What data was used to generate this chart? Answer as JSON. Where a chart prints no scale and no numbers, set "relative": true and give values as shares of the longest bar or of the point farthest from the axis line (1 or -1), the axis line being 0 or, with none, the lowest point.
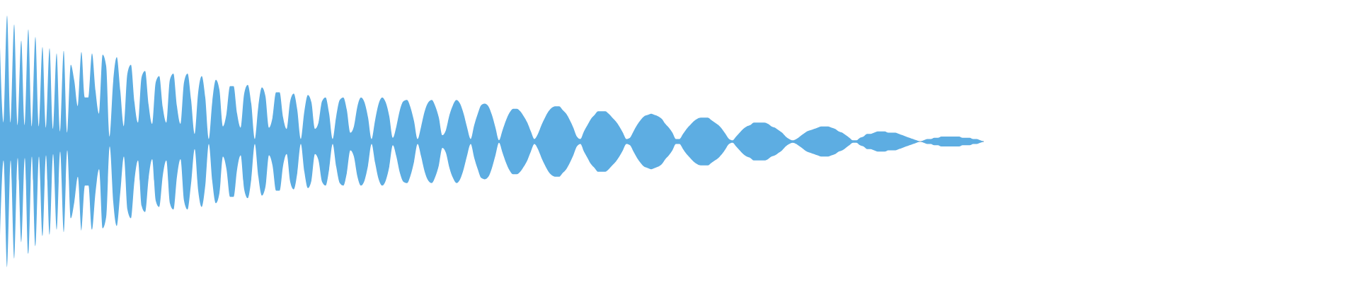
{
  "chart_data": {
    "type": "area",
    "relative": true,
    "categories": [
      null,
      null,
      null,
      null,
      null,
      null,
      null,
      null,
      null,
      null,
      null,
      null,
      null,
      null,
      null,
      null,
      null,
      null,
      null,
      null,
      null,
      null,
      null,
      null,
      null,
      null,
      null,
      null,
      null,
      null,
      null,
      null,
      null,
      null,
      null,
      null,
      null,
      null,
      null,
      null,
      null,
      null,
      null,
      null,
      null,
      null,
      null,
      null,
      null,
      null,
      null,
      null,
      null,
      null,
      null,
      null,
      null,
      null,
      null,
      null,
      null,
      null,
      null,
      null,
      null,
      null,
      null,
      null,
      null,
      null,
      null,
      null,
      null,
      null,
      null,
      null,
      null,
      null,
      null,
      null,
      null,
      null,
      null,
      null,
      null,
      null,
      null,
      null,
      null,
      null,
      null,
      null,
      null,
      null,
      null,
      null,
      null,
      null,
      null,
      null,
      null,
      null,
      null,
      null,
      null,
      null,
      null,
      null,
      null,
      null,
      null,
      null,
      null,
      null,
      null,
      null,
      null,
      null,
      null,
      null,
      null,
      null,
      null,
      null,
      null,
      null,
      null,
      null,
      null,
      null,
      null,
      null,
      null,
      null,
      null,
      null,
      null,
      null,
      null,
      null,
      null,
      null,
      null,
      null,
      null,
      null,
      null,
      null,
      null,
      null,
      null,
      null,
      null,
      null,
      null,
      null,
      null,
      null,
      null,
      null,
      null,
      null,
      null,
      null,
      null,
      null,
      null,
      null,
      null,
      null,
      null,
      null,
      null,
      null,
      null,
      null,
      null,
      null,
      null,
      null,
      null,
      null,
      null,
      null,
      null,
      null,
      null,
      null,
      null,
      null,
      null,
      null,
      null,
      null,
      null,
      null,
      null,
      null,
      null,
      null,
      null,
      null,
      null,
      null,
      null,
      null,
      null,
      null,
      null,
      null,
      null,
      null,
      null,
      null,
      null,
      null,
      null,
      null,
      null,
      null,
      null,
      null,
      null,
      null,
      null,
      null,
      null,
      null,
      null,
      null,
      null,
      null,
      null,
      null,
      null,
      null,
      null,
      null,
      null,
      null,
      null,
      null,
      null,
      null,
      null,
      null,
      null,
      null,
      null,
      null,
      null,
      null,
      null,
      null,
      null,
      null,
      null,
      null,
      null,
      null,
      null,
      null,
      null,
      null,
      null,
      null,
      null,
      null,
      null,
      null,
      null,
      null,
      null,
      null,
      null,
      null,
      null,
      null,
      null
    ],
    "series": [
      {
        "color": "#5dade2",
        "values": [
          0.75,
          0.15,
          1,
          0.15,
          0.93,
          0.13,
          0.8,
          0.13,
          0.89,
          0.12,
          0.83,
          0.12,
          0.75,
          0.11,
          0.74,
          0.1,
          0.7,
          0.08,
          0.72,
          0.07,
          0.61,
          0.48,
          0.28,
          0.71,
          0.35,
          0.35,
          0.7,
          0.4,
          0.22,
          0.69,
          0.6,
          0.04,
          0.48,
          0.67,
          0.4,
          0.12,
          0.54,
          0.61,
          0.31,
          0.15,
          0.51,
          0.56,
          0.29,
          0.14,
          0.47,
          0.52,
          0.27,
          0.15,
          0.49,
          0.54,
          0.28,
          0.14,
          0.47,
          0.54,
          0.33,
          0.06,
          0.39,
          0.52,
          0.35,
          0.02,
          0.32,
          0.49,
          0.41,
          0.12,
          0.22,
          0.44,
          0.44,
          0.22,
          0.11,
          0.38,
          0.45,
          0.3,
          0.02,
          0.28,
          0.43,
          0.36,
          0.11,
          0.19,
          0.39,
          0.39,
          0.19,
          0.1,
          0.32,
          0.38,
          0.25,
          0.02,
          0.24,
          0.37,
          0.31,
          0.1,
          0.15,
          0.32,
          0.35,
          0.22,
          0.02,
          0.2,
          0.33,
          0.35,
          0.25,
          0.07,
          0.12,
          0.28,
          0.35,
          0.31,
          0.19,
          0.02,
          0.17,
          0.3,
          0.35,
          0.31,
          0.2,
          0.03,
          0.12,
          0.25,
          0.32,
          0.33,
          0.27,
          0.16,
          0.02,
          0.12,
          0.24,
          0.31,
          0.33,
          0.28,
          0.19,
          0.05,
          0.09,
          0.21,
          0.29,
          0.33,
          0.3,
          0.22,
          0.11,
          0.02,
          0.13,
          0.22,
          0.29,
          0.3,
          0.28,
          0.21,
          0.11,
          0.01,
          0.09,
          0.17,
          0.23,
          0.26,
          0.26,
          0.24,
          0.2,
          0.15,
          0.08,
          0.02,
          0.06,
          0.13,
          0.19,
          0.24,
          0.27,
          0.28,
          0.28,
          0.25,
          0.22,
          0.17,
          0.11,
          0.04,
          0.02,
          0.08,
          0.13,
          0.18,
          0.21,
          0.24,
          0.24,
          0.24,
          0.22,
          0.19,
          0.16,
          0.12,
          0.07,
          0.02,
          0.03,
          0.08,
          0.13,
          0.17,
          0.2,
          0.21,
          0.22,
          0.21,
          0.2,
          0.18,
          0.14,
          0.11,
          0.07,
          0.02,
          0.02,
          0.06,
          0.1,
          0.13,
          0.16,
          0.18,
          0.19,
          0.19,
          0.19,
          0.17,
          0.15,
          0.13,
          0.1,
          0.06,
          0.02,
          0.01,
          0.04,
          0.07,
          0.1,
          0.12,
          0.13,
          0.15,
          0.15,
          0.15,
          0.15,
          0.14,
          0.12,
          0.11,
          0.09,
          0.07,
          0.04,
          0.02,
          0.01,
          0.02,
          0.04,
          0.06,
          0.08,
          0.09,
          0.1,
          0.11,
          0.12,
          0.12,
          0.12,
          0.11,
          0.1,
          0.08,
          0.07,
          0.05,
          0.03,
          0.01,
          0.01,
          0.03,
          0.04,
          0.06,
          0.06,
          0.07,
          0.08,
          0.08,
          0.08,
          0.07,
          0.07,
          0.07,
          0.06,
          0.05,
          0.04,
          0.03,
          0.02,
          0.01,
          0,
          0.01,
          0.02,
          0.02,
          0.03,
          0.03,
          0.04,
          0.04,
          0.04,
          0.04,
          0.04,
          0.04,
          0.03,
          0.03,
          0.03,
          0.02,
          0.02,
          0.01,
          0
        ]
      },
      {
        "color": "#5dade2",
        "values": [
          -0.75,
          -0.15,
          -1,
          -0.15,
          -0.93,
          -0.13,
          -0.8,
          -0.13,
          -0.89,
          -0.12,
          -0.83,
          -0.12,
          -0.75,
          -0.11,
          -0.74,
          -0.1,
          -0.7,
          -0.08,
          -0.72,
          -0.07,
          -0.61,
          -0.48,
          -0.28,
          -0.71,
          -0.35,
          -0.35,
          -0.7,
          -0.4,
          -0.22,
          -0.69,
          -0.6,
          -0.04,
          -0.48,
          -0.67,
          -0.4,
          -0.12,
          -0.54,
          -0.61,
          -0.31,
          -0.15,
          -0.51,
          -0.56,
          -0.29,
          -0.14,
          -0.47,
          -0.52,
          -0.27,
          -0.15,
          -0.49,
          -0.54,
          -0.28,
          -0.14,
          -0.47,
          -0.54,
          -0.33,
          -0.06,
          -0.39,
          -0.52,
          -0.35,
          -0.02,
          -0.32,
          -0.49,
          -0.41,
          -0.12,
          -0.22,
          -0.44,
          -0.44,
          -0.22,
          -0.11,
          -0.38,
          -0.45,
          -0.3,
          -0.02,
          -0.28,
          -0.43,
          -0.36,
          -0.11,
          -0.19,
          -0.39,
          -0.39,
          -0.19,
          -0.1,
          -0.32,
          -0.38,
          -0.25,
          -0.02,
          -0.24,
          -0.37,
          -0.31,
          -0.1,
          -0.15,
          -0.32,
          -0.35,
          -0.22,
          -0.02,
          -0.2,
          -0.33,
          -0.35,
          -0.25,
          -0.07,
          -0.12,
          -0.28,
          -0.35,
          -0.31,
          -0.19,
          -0.02,
          -0.17,
          -0.3,
          -0.35,
          -0.31,
          -0.2,
          -0.03,
          -0.12,
          -0.25,
          -0.32,
          -0.33,
          -0.27,
          -0.16,
          -0.02,
          -0.12,
          -0.24,
          -0.31,
          -0.33,
          -0.28,
          -0.19,
          -0.05,
          -0.09,
          -0.21,
          -0.29,
          -0.33,
          -0.3,
          -0.22,
          -0.11,
          -0.02,
          -0.13,
          -0.22,
          -0.29,
          -0.3,
          -0.28,
          -0.21,
          -0.11,
          -0.01,
          -0.09,
          -0.17,
          -0.23,
          -0.26,
          -0.26,
          -0.24,
          -0.2,
          -0.15,
          -0.08,
          -0.02,
          -0.06,
          -0.13,
          -0.19,
          -0.24,
          -0.27,
          -0.28,
          -0.28,
          -0.25,
          -0.22,
          -0.17,
          -0.11,
          -0.04,
          -0.02,
          -0.08,
          -0.13,
          -0.18,
          -0.21,
          -0.24,
          -0.24,
          -0.24,
          -0.22,
          -0.19,
          -0.16,
          -0.12,
          -0.07,
          -0.02,
          -0.03,
          -0.08,
          -0.13,
          -0.17,
          -0.2,
          -0.21,
          -0.22,
          -0.21,
          -0.2,
          -0.18,
          -0.14,
          -0.11,
          -0.07,
          -0.02,
          -0.02,
          -0.06,
          -0.1,
          -0.13,
          -0.16,
          -0.18,
          -0.19,
          -0.19,
          -0.19,
          -0.17,
          -0.15,
          -0.13,
          -0.1,
          -0.06,
          -0.02,
          -0.01,
          -0.04,
          -0.07,
          -0.1,
          -0.12,
          -0.13,
          -0.15,
          -0.15,
          -0.15,
          -0.15,
          -0.14,
          -0.12,
          -0.11,
          -0.09,
          -0.07,
          -0.04,
          -0.02,
          -0.01,
          -0.02,
          -0.04,
          -0.06,
          -0.08,
          -0.09,
          -0.1,
          -0.11,
          -0.12,
          -0.12,
          -0.12,
          -0.11,
          -0.1,
          -0.08,
          -0.07,
          -0.05,
          -0.03,
          -0.01,
          -0.01,
          -0.03,
          -0.04,
          -0.06,
          -0.06,
          -0.07,
          -0.08,
          -0.08,
          -0.08,
          -0.07,
          -0.07,
          -0.07,
          -0.06,
          -0.05,
          -0.04,
          -0.03,
          -0.02,
          -0.01,
          0,
          -0.01,
          -0.02,
          -0.02,
          -0.03,
          -0.03,
          -0.04,
          -0.04,
          -0.04,
          -0.04,
          -0.04,
          -0.04,
          -0.03,
          -0.03,
          -0.03,
          -0.02,
          -0.02,
          -0.01,
          0
        ]
      }
    ]
  }
}
